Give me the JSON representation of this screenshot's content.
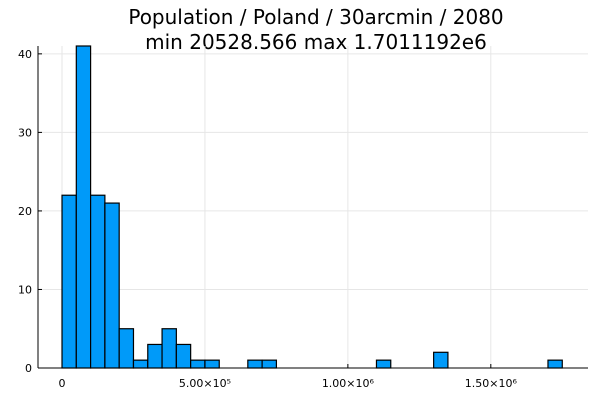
{
  "chart_data": {
    "type": "bar",
    "title": "Population / Poland / 30arcmin / 2080",
    "subtitle": "min 20528.566  max 1.7011192e6",
    "xlabel": "",
    "ylabel": "",
    "bin_width": 50000,
    "bins_start": [
      0,
      50000,
      100000,
      150000,
      200000,
      250000,
      300000,
      350000,
      400000,
      450000,
      500000,
      550000,
      600000,
      650000,
      700000,
      750000,
      800000,
      850000,
      900000,
      950000,
      1000000,
      1050000,
      1100000,
      1150000,
      1200000,
      1250000,
      1300000,
      1350000,
      1400000,
      1450000,
      1500000,
      1550000,
      1600000,
      1650000,
      1700000
    ],
    "values": [
      22,
      41,
      22,
      21,
      5,
      1,
      3,
      5,
      3,
      1,
      1,
      0,
      0,
      1,
      1,
      0,
      0,
      0,
      0,
      0,
      0,
      0,
      1,
      0,
      0,
      0,
      2,
      0,
      0,
      0,
      0,
      0,
      0,
      0,
      1
    ],
    "xlim": [
      -84000,
      1840000
    ],
    "ylim": [
      0,
      41
    ],
    "xticks": [
      {
        "value": 0,
        "label": "0"
      },
      {
        "value": 500000,
        "label": "5.00×10⁵"
      },
      {
        "value": 1000000,
        "label": "1.00×10⁶"
      },
      {
        "value": 1500000,
        "label": "1.50×10⁶"
      }
    ],
    "yticks": [
      {
        "value": 0,
        "label": "0"
      },
      {
        "value": 10,
        "label": "10"
      },
      {
        "value": 20,
        "label": "20"
      },
      {
        "value": 30,
        "label": "30"
      },
      {
        "value": 40,
        "label": "40"
      }
    ],
    "grid": true,
    "legend": "none",
    "bar_color": "#009af9"
  }
}
